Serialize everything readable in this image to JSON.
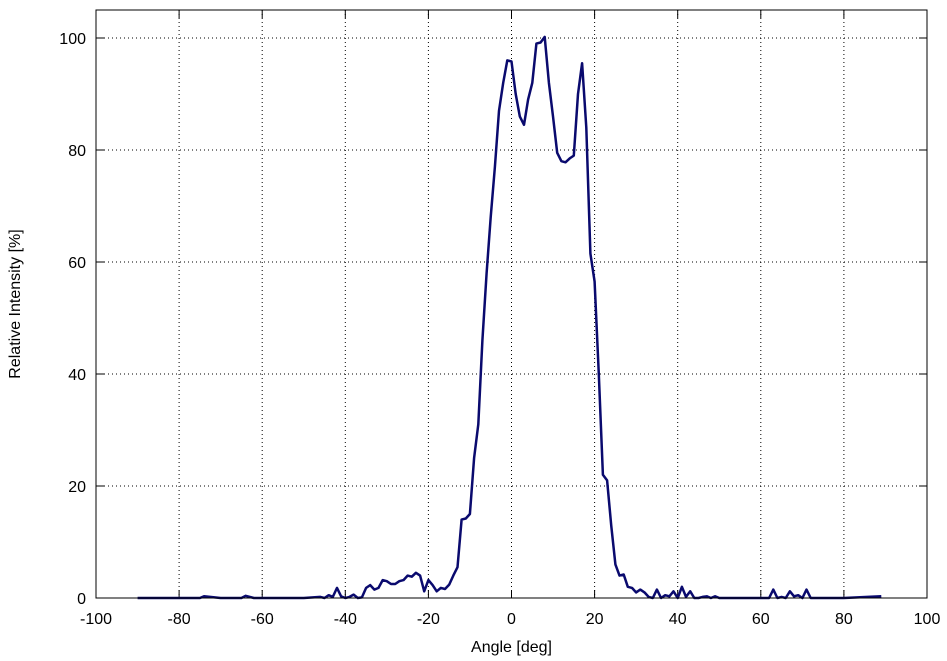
{
  "chart_data": {
    "type": "line",
    "title": "",
    "xlabel": "Angle [deg]",
    "ylabel": "Relative Intensity [%]",
    "xlim": [
      -100,
      100
    ],
    "ylim": [
      0,
      105
    ],
    "xticks": [
      -100,
      -80,
      -60,
      -40,
      -20,
      0,
      20,
      40,
      60,
      80,
      100
    ],
    "yticks": [
      0,
      20,
      40,
      60,
      80,
      100
    ],
    "grid": true,
    "legend": "none",
    "series": [
      {
        "color": "#0a0a6e",
        "x": [
          -90,
          -80,
          -75,
          -74,
          -70,
          -65,
          -64,
          -62,
          -55,
          -50,
          -46,
          -45,
          -44,
          -43,
          -42,
          -41,
          -40,
          -39,
          -38,
          -37,
          -36,
          -35,
          -34,
          -33,
          -32,
          -31,
          -30,
          -29,
          -28,
          -27,
          -26,
          -25,
          -24,
          -23,
          -22,
          -21,
          -20,
          -19,
          -18,
          -17,
          -16,
          -15,
          -14,
          -13,
          -12,
          -11,
          -10,
          -9,
          -8,
          -7,
          -6,
          -5,
          -4,
          -3,
          -2,
          -1,
          0,
          1,
          2,
          3,
          4,
          5,
          6,
          7,
          8,
          9,
          10,
          11,
          12,
          13,
          14,
          15,
          16,
          17,
          18,
          19,
          20,
          21,
          22,
          23,
          24,
          25,
          26,
          27,
          28,
          29,
          30,
          31,
          32,
          33,
          34,
          35,
          36,
          37,
          38,
          39,
          40,
          41,
          42,
          43,
          44,
          45,
          46,
          47,
          48,
          49,
          50,
          55,
          60,
          62,
          63,
          64,
          65,
          66,
          67,
          68,
          69,
          70,
          71,
          72,
          80,
          89
        ],
        "y": [
          0,
          0,
          0,
          0.3,
          0,
          0,
          0.4,
          0,
          0,
          0,
          0.2,
          0,
          0.5,
          0.2,
          1.8,
          0.3,
          0,
          0.2,
          0.6,
          0,
          0.1,
          1.8,
          2.3,
          1.5,
          1.8,
          3.2,
          3,
          2.5,
          2.5,
          3,
          3.2,
          4,
          3.8,
          4.5,
          4,
          1.2,
          3.2,
          2.3,
          1.2,
          1.8,
          1.6,
          2.4,
          4,
          5.5,
          14,
          14.2,
          15,
          25,
          31,
          46,
          58,
          68,
          77,
          87,
          92,
          96,
          95.8,
          90,
          86,
          84.5,
          89,
          92,
          99,
          99.2,
          100.2,
          92,
          86,
          79.5,
          78,
          77.8,
          78.5,
          79,
          90,
          95.5,
          84,
          61.5,
          56.5,
          40,
          22,
          21,
          13,
          6,
          4,
          4.2,
          2,
          1.8,
          1,
          1.5,
          1,
          0.2,
          0,
          1.5,
          0,
          0.5,
          0.3,
          1.2,
          0,
          2,
          0.2,
          1.2,
          0,
          0,
          0.2,
          0.3,
          0,
          0.3,
          0,
          0,
          0,
          0,
          1.5,
          0,
          0.2,
          0,
          1.2,
          0.3,
          0.5,
          0,
          1.5,
          0,
          0,
          0.3
        ]
      }
    ]
  }
}
